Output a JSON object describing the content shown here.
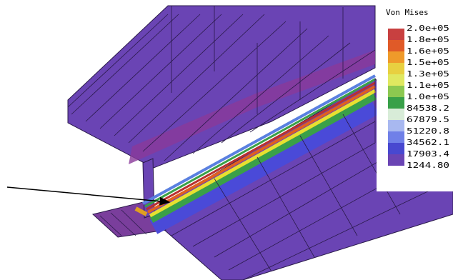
{
  "legend": {
    "title": "Von Mises",
    "labels": [
      "2.0e+05",
      "1.8e+05",
      "1.6e+05",
      "1.5e+05",
      "1.3e+05",
      "1.1e+05",
      "1.0e+05",
      "84538.2",
      "67879.5",
      "51220.8",
      "34562.1",
      "17903.4",
      "1244.80"
    ]
  }
}
